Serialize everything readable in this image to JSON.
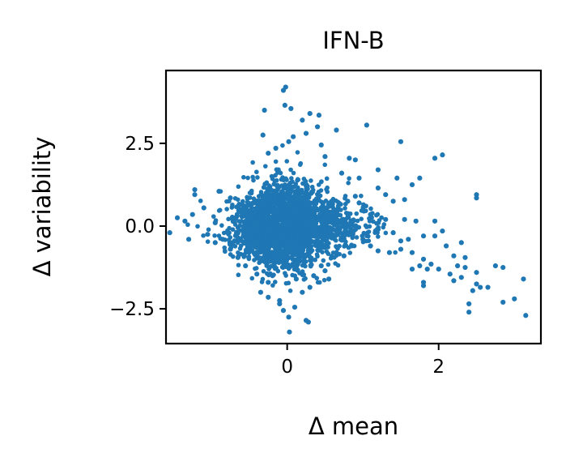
{
  "chart_data": {
    "type": "scatter",
    "title": "IFN-B",
    "xlabel": "Δ mean",
    "ylabel": "Δ variability",
    "xlim": [
      -1.6,
      3.35
    ],
    "ylim": [
      -3.55,
      4.7
    ],
    "xticks": [
      0,
      2
    ],
    "yticks": [
      -2.5,
      0.0,
      2.5
    ],
    "grid": false,
    "legend": "none",
    "color": "#1f77b4",
    "series": [
      {
        "points": [
          [
            -0.02,
            4.2
          ],
          [
            -0.05,
            4.1
          ],
          [
            -0.3,
            3.5
          ],
          [
            0.3,
            3.4
          ],
          [
            0.42,
            3.35
          ],
          [
            -0.03,
            3.65
          ],
          [
            0.05,
            3.55
          ],
          [
            0.2,
            3.2
          ],
          [
            1.05,
            3.05
          ],
          [
            0.4,
            3.0
          ],
          [
            -0.32,
            2.75
          ],
          [
            0.08,
            2.7
          ],
          [
            0.25,
            2.8
          ],
          [
            0.65,
            2.9
          ],
          [
            0.02,
            2.55
          ],
          [
            1.5,
            2.55
          ],
          [
            -0.15,
            2.35
          ],
          [
            0.45,
            2.45
          ],
          [
            0.82,
            2.05
          ],
          [
            -0.25,
            2.2
          ],
          [
            0.9,
            2.0
          ],
          [
            0.5,
            2.1
          ],
          [
            1.95,
            2.05
          ],
          [
            2.05,
            2.15
          ],
          [
            1.2,
            1.7
          ],
          [
            1.45,
            1.45
          ],
          [
            1.75,
            1.45
          ],
          [
            1.65,
            1.25
          ],
          [
            0.72,
            1.6
          ],
          [
            0.95,
            1.45
          ],
          [
            2.5,
            0.95
          ],
          [
            2.5,
            0.85
          ],
          [
            -1.22,
            1.1
          ],
          [
            -1.22,
            0.95
          ],
          [
            -0.9,
            1.05
          ],
          [
            -0.75,
            0.85
          ],
          [
            1.2,
            1.15
          ],
          [
            1.3,
            0.95
          ],
          [
            1.55,
            0.8
          ],
          [
            1.4,
            0.75
          ],
          [
            -1.45,
            0.25
          ],
          [
            -1.35,
            0.15
          ],
          [
            -1.25,
            0.35
          ],
          [
            -1.55,
            -0.2
          ],
          [
            -1.3,
            -0.4
          ],
          [
            -1.05,
            -0.25
          ],
          [
            -0.95,
            0.1
          ],
          [
            -1.1,
            0.55
          ],
          [
            -0.95,
            -0.5
          ],
          [
            -0.85,
            -0.4
          ],
          [
            -0.75,
            -0.7
          ],
          [
            -0.65,
            -0.95
          ],
          [
            -0.55,
            -1.2
          ],
          [
            -0.4,
            -1.45
          ],
          [
            -0.25,
            -1.7
          ],
          [
            -0.35,
            -2.0
          ],
          [
            -0.25,
            -2.15
          ],
          [
            -0.1,
            -2.25
          ],
          [
            -0.05,
            -2.55
          ],
          [
            0.02,
            -2.75
          ],
          [
            0.1,
            -2.45
          ],
          [
            0.2,
            -2.0
          ],
          [
            0.3,
            -1.85
          ],
          [
            0.25,
            -2.85
          ],
          [
            0.28,
            -2.9
          ],
          [
            0.03,
            -3.2
          ],
          [
            -0.1,
            -2.35
          ],
          [
            0.12,
            -1.6
          ],
          [
            0.35,
            -1.5
          ],
          [
            0.5,
            -1.35
          ],
          [
            0.55,
            -1.6
          ],
          [
            0.45,
            -1.2
          ],
          [
            0.65,
            -0.8
          ],
          [
            0.75,
            -0.9
          ],
          [
            0.85,
            -0.6
          ],
          [
            1.2,
            -0.75
          ],
          [
            1.35,
            -0.8
          ],
          [
            1.5,
            -0.7
          ],
          [
            1.65,
            -0.8
          ],
          [
            1.8,
            -1.0
          ],
          [
            1.9,
            -1.15
          ],
          [
            1.75,
            -1.2
          ],
          [
            1.85,
            -1.3
          ],
          [
            1.65,
            -1.3
          ],
          [
            1.8,
            -1.7
          ],
          [
            1.8,
            -1.8
          ],
          [
            2.0,
            -1.3
          ],
          [
            2.15,
            -1.45
          ],
          [
            2.25,
            -1.2
          ],
          [
            2.35,
            -1.25
          ],
          [
            2.35,
            -0.95
          ],
          [
            2.2,
            -0.9
          ],
          [
            2.1,
            -0.6
          ],
          [
            2.3,
            -0.5
          ],
          [
            2.2,
            -1.65
          ],
          [
            2.5,
            -1.75
          ],
          [
            2.45,
            -1.95
          ],
          [
            2.55,
            -1.85
          ],
          [
            2.65,
            -1.85
          ],
          [
            2.4,
            -2.35
          ],
          [
            2.4,
            -2.6
          ],
          [
            2.85,
            -2.3
          ],
          [
            3.0,
            -2.2
          ],
          [
            3.15,
            -2.7
          ],
          [
            3.12,
            -1.6
          ],
          [
            2.85,
            -1.25
          ],
          [
            2.75,
            -1.2
          ],
          [
            2.5,
            -1.4
          ],
          [
            2.3,
            -1.55
          ],
          [
            1.95,
            -0.3
          ],
          [
            1.7,
            0.15
          ],
          [
            1.8,
            -0.3
          ],
          [
            1.6,
            -0.4
          ],
          [
            1.55,
            0.2
          ],
          [
            1.95,
            0.15
          ],
          [
            2.05,
            -0.15
          ],
          [
            1.4,
            -0.2
          ],
          [
            1.5,
            -0.45
          ],
          [
            1.2,
            -0.1
          ],
          [
            1.1,
            0.35
          ],
          [
            1.3,
            0.2
          ],
          [
            0.95,
            0.7
          ],
          [
            0.9,
            0.9
          ],
          [
            0.8,
            0.75
          ],
          [
            1.0,
            -0.4
          ],
          [
            1.1,
            -0.6
          ]
        ]
      }
    ]
  }
}
